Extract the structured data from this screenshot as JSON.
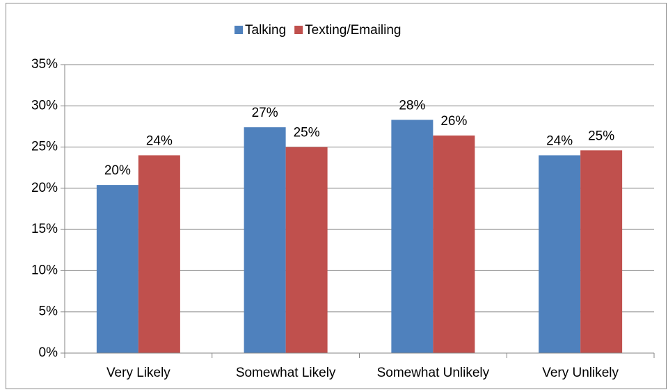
{
  "chart_data": {
    "type": "bar",
    "categories": [
      "Very Likely",
      "Somewhat Likely",
      "Somewhat Unlikely",
      "Very Unlikely"
    ],
    "series": [
      {
        "name": "Talking",
        "color": "#4f81bd",
        "values": [
          20.4,
          27.4,
          28.3,
          24.0
        ],
        "value_labels": [
          "20%",
          "27%",
          "28%",
          "24%"
        ]
      },
      {
        "name": "Texting/Emailing",
        "color": "#c0504d",
        "values": [
          24.0,
          25.0,
          26.4,
          24.6
        ],
        "value_labels": [
          "24%",
          "25%",
          "26%",
          "25%"
        ]
      }
    ],
    "ylim": [
      0,
      35
    ],
    "yticks": [
      {
        "value": 0,
        "label": "0%"
      },
      {
        "value": 5,
        "label": "5%"
      },
      {
        "value": 10,
        "label": "10%"
      },
      {
        "value": 15,
        "label": "15%"
      },
      {
        "value": 20,
        "label": "20%"
      },
      {
        "value": 25,
        "label": "25%"
      },
      {
        "value": 30,
        "label": "30%"
      },
      {
        "value": 35,
        "label": "35%"
      }
    ],
    "grid": true,
    "legend": "top"
  }
}
